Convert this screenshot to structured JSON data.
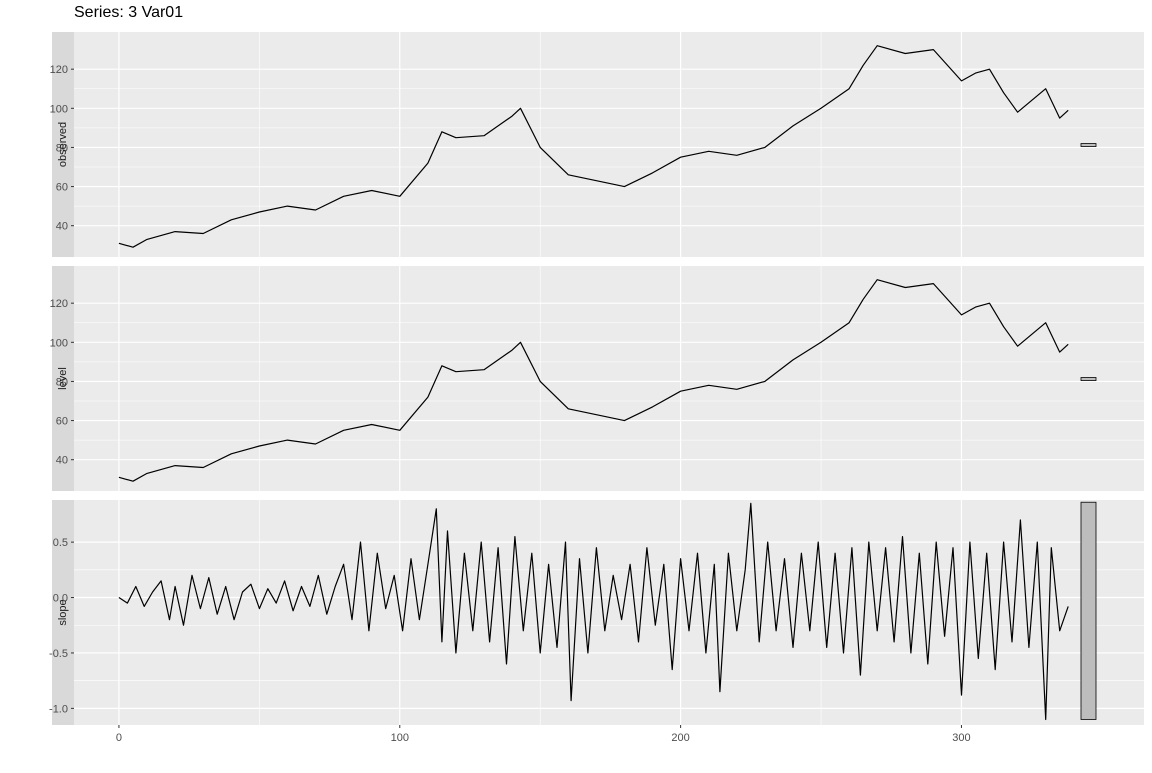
{
  "chart_data": {
    "type": "line",
    "title": "Series: 3 Var01",
    "x_axis": {
      "range": [
        -16,
        365
      ],
      "ticks": [
        0,
        100,
        200,
        300
      ]
    },
    "grid": true,
    "panels": [
      {
        "strip_label": "observed",
        "ylim": [
          24,
          139
        ],
        "y_ticks": [
          40,
          60,
          80,
          100,
          120
        ],
        "range_bar": {
          "low": 80.5,
          "high": 82.0
        },
        "series": {
          "x": [
            0,
            5,
            10,
            20,
            30,
            40,
            50,
            60,
            70,
            80,
            90,
            100,
            110,
            115,
            120,
            130,
            140,
            143,
            150,
            160,
            170,
            180,
            190,
            200,
            210,
            220,
            230,
            240,
            250,
            260,
            265,
            270,
            280,
            290,
            300,
            305,
            310,
            315,
            320,
            330,
            335,
            338
          ],
          "y": [
            31,
            29,
            33,
            37,
            36,
            43,
            47,
            50,
            48,
            55,
            58,
            55,
            72,
            88,
            85,
            86,
            96,
            100,
            80,
            66,
            63,
            60,
            67,
            75,
            78,
            76,
            80,
            91,
            100,
            110,
            122,
            132,
            128,
            130,
            114,
            118,
            120,
            108,
            98,
            110,
            95,
            99
          ]
        }
      },
      {
        "strip_label": "level",
        "ylim": [
          24,
          139
        ],
        "y_ticks": [
          40,
          60,
          80,
          100,
          120
        ],
        "range_bar": {
          "low": 80.5,
          "high": 82.0
        },
        "series": {
          "x": [
            0,
            5,
            10,
            20,
            30,
            40,
            50,
            60,
            70,
            80,
            90,
            100,
            110,
            115,
            120,
            130,
            140,
            143,
            150,
            160,
            170,
            180,
            190,
            200,
            210,
            220,
            230,
            240,
            250,
            260,
            265,
            270,
            280,
            290,
            300,
            305,
            310,
            315,
            320,
            330,
            335,
            338
          ],
          "y": [
            31,
            29,
            33,
            37,
            36,
            43,
            47,
            50,
            48,
            55,
            58,
            55,
            72,
            88,
            85,
            86,
            96,
            100,
            80,
            66,
            63,
            60,
            67,
            75,
            78,
            76,
            80,
            91,
            100,
            110,
            122,
            132,
            128,
            130,
            114,
            118,
            120,
            108,
            98,
            110,
            95,
            99
          ]
        }
      },
      {
        "strip_label": "slope",
        "ylim": [
          -1.15,
          0.88
        ],
        "y_ticks": [
          -1.0,
          -0.5,
          0.0,
          0.5
        ],
        "y_tick_labels": [
          "-1.0",
          "-0.5",
          "0.0",
          "0.5"
        ],
        "range_bar": {
          "low": -1.1,
          "high": 0.86
        },
        "series": {
          "x": [
            0,
            3,
            6,
            9,
            12,
            15,
            18,
            20,
            23,
            26,
            29,
            32,
            35,
            38,
            41,
            44,
            47,
            50,
            53,
            56,
            59,
            62,
            65,
            68,
            71,
            74,
            77,
            80,
            83,
            86,
            89,
            92,
            95,
            98,
            101,
            104,
            107,
            110,
            113,
            115,
            117,
            120,
            123,
            126,
            129,
            132,
            135,
            138,
            141,
            144,
            147,
            150,
            153,
            156,
            159,
            161,
            164,
            167,
            170,
            173,
            176,
            179,
            182,
            185,
            188,
            191,
            194,
            197,
            200,
            203,
            206,
            209,
            212,
            214,
            217,
            220,
            223,
            225,
            228,
            231,
            234,
            237,
            240,
            243,
            246,
            249,
            252,
            255,
            258,
            261,
            264,
            267,
            270,
            273,
            276,
            279,
            282,
            285,
            288,
            291,
            294,
            297,
            300,
            303,
            306,
            309,
            312,
            315,
            318,
            321,
            324,
            327,
            330,
            332,
            335,
            338
          ],
          "y": [
            0.0,
            -0.05,
            0.1,
            -0.08,
            0.05,
            0.15,
            -0.2,
            0.1,
            -0.25,
            0.2,
            -0.1,
            0.18,
            -0.15,
            0.1,
            -0.2,
            0.05,
            0.12,
            -0.1,
            0.08,
            -0.05,
            0.15,
            -0.12,
            0.1,
            -0.08,
            0.2,
            -0.15,
            0.1,
            0.3,
            -0.2,
            0.5,
            -0.3,
            0.4,
            -0.1,
            0.2,
            -0.3,
            0.35,
            -0.2,
            0.3,
            0.8,
            -0.4,
            0.6,
            -0.5,
            0.4,
            -0.3,
            0.5,
            -0.4,
            0.45,
            -0.6,
            0.55,
            -0.3,
            0.4,
            -0.5,
            0.3,
            -0.45,
            0.5,
            -0.93,
            0.35,
            -0.5,
            0.45,
            -0.3,
            0.2,
            -0.2,
            0.3,
            -0.4,
            0.45,
            -0.25,
            0.3,
            -0.65,
            0.35,
            -0.3,
            0.4,
            -0.5,
            0.3,
            -0.85,
            0.4,
            -0.3,
            0.25,
            0.85,
            -0.4,
            0.5,
            -0.3,
            0.35,
            -0.45,
            0.4,
            -0.3,
            0.5,
            -0.45,
            0.4,
            -0.5,
            0.45,
            -0.7,
            0.5,
            -0.3,
            0.45,
            -0.4,
            0.55,
            -0.5,
            0.4,
            -0.6,
            0.5,
            -0.35,
            0.45,
            -0.88,
            0.5,
            -0.55,
            0.4,
            -0.65,
            0.5,
            -0.4,
            0.7,
            -0.45,
            0.5,
            -1.1,
            0.45,
            -0.3,
            -0.08
          ]
        }
      }
    ]
  }
}
